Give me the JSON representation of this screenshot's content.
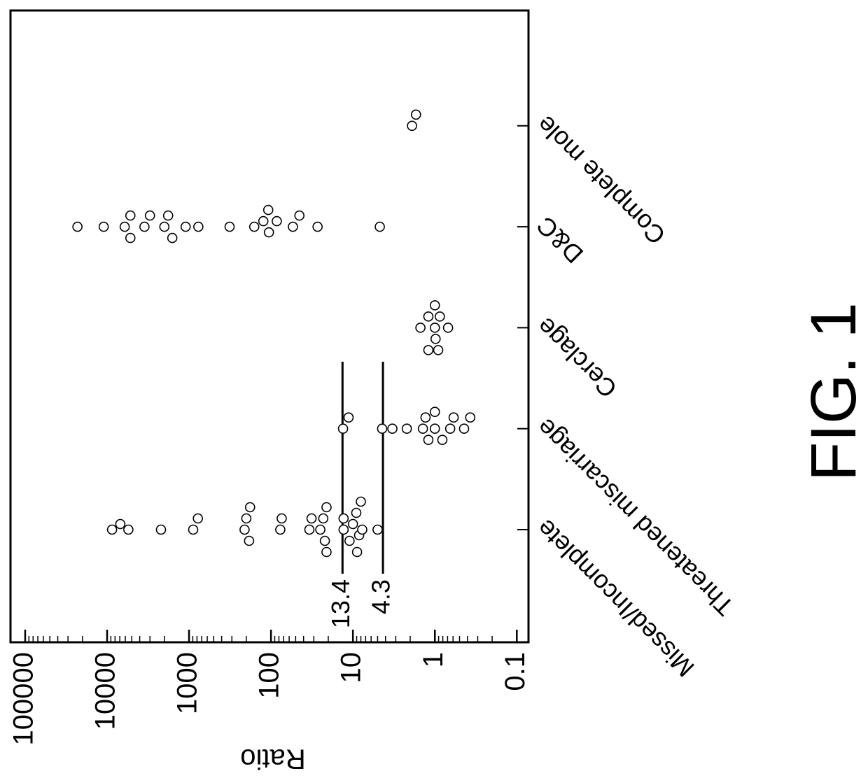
{
  "figure_label": "FIG. 1",
  "chart_data": {
    "type": "dotplot",
    "y_label": "Ratio",
    "categories": [
      "Missed/Incomplete",
      "Threatened miscarriage",
      "Cerclage",
      "D&C",
      "Complete mole"
    ],
    "values": [
      [
        8700,
        6900,
        5500,
        2200,
        890,
        780,
        210,
        200,
        185,
        180,
        77,
        74,
        34,
        32,
        25,
        23,
        22,
        21,
        21,
        13,
        13,
        11,
        10,
        9.1,
        8.9,
        8.4,
        8,
        7.7,
        5
      ],
      [
        13.2,
        11.3,
        4.4,
        3.3,
        2.2,
        1.4,
        1.3,
        1.2,
        1.0,
        1.0,
        0.81,
        0.65,
        0.59,
        0.44,
        0.37
      ],
      [
        1.0,
        1.2,
        0.98,
        1.5,
        1.0,
        0.69,
        1.2,
        0.87,
        0.91
      ],
      [
        23000,
        11000,
        6100,
        5200,
        5200,
        3500,
        3000,
        2000,
        1800,
        1600,
        1100,
        770,
        320,
        160,
        124,
        106,
        108,
        85,
        54,
        45,
        27,
        4.7
      ],
      [
        1.9,
        1.7
      ]
    ],
    "reference_lines": [
      13.4,
      4.3
    ],
    "log_scale": true,
    "ylim": [
      0.072,
      151000
    ],
    "yticks": [
      100000,
      10000,
      1000,
      100,
      10,
      1,
      0.1
    ],
    "yminor": [
      0.2,
      0.3,
      0.4,
      0.5,
      0.6,
      0.7,
      0.8,
      0.9,
      2,
      3,
      4,
      5,
      6,
      7,
      8,
      9,
      20,
      30,
      40,
      50,
      60,
      70,
      80,
      90,
      200,
      300,
      400,
      500,
      600,
      700,
      800,
      900,
      2000,
      3000,
      4000,
      5000,
      6000,
      7000,
      8000,
      9000,
      20000,
      30000,
      40000,
      50000,
      60000,
      70000,
      80000,
      90000
    ],
    "marker_color": "#000000"
  }
}
